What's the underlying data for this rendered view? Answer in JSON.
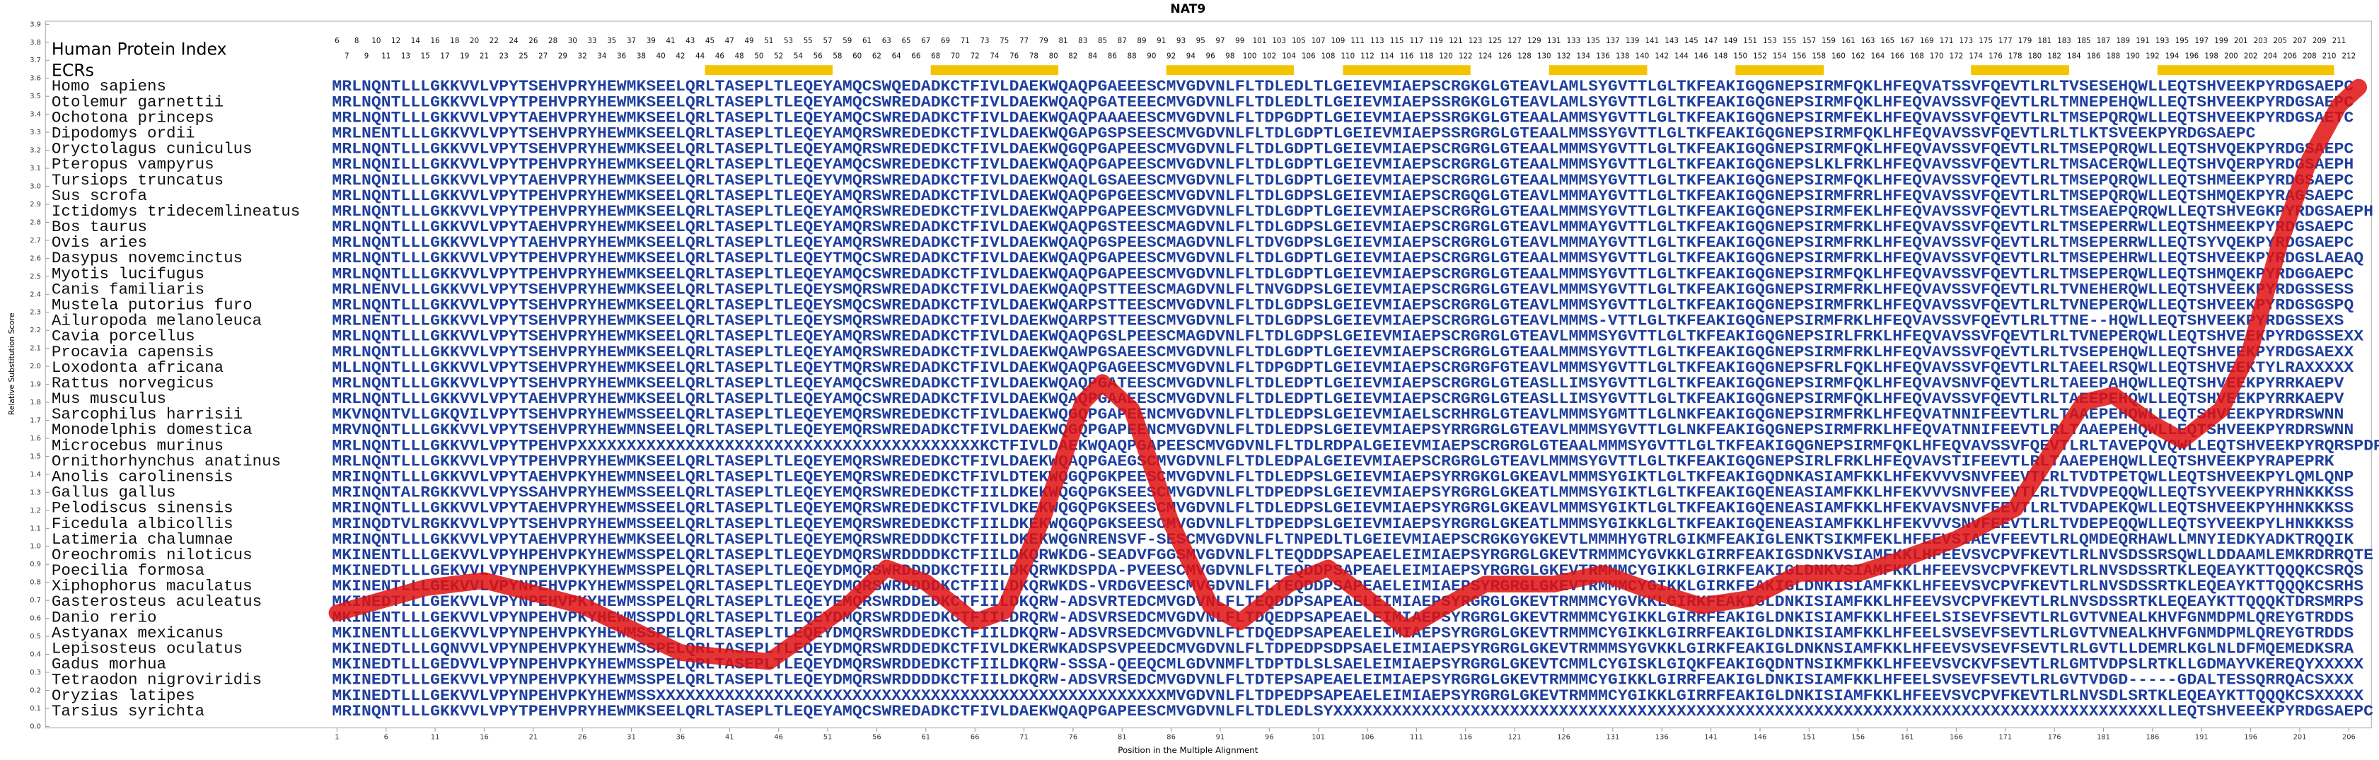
{
  "chart_data": {
    "type": "line",
    "title": "NAT9",
    "xlabel": "Position in the Multiple Alignment",
    "ylabel": "Relative Substitution Score",
    "header_label": "Human Protein Index",
    "ecr_label": "ECRs",
    "color": "#e01010",
    "ecr_color": "#f5c400",
    "sequence_color": "#1f3f9f",
    "xlim": [
      -28.7,
      208.3
    ],
    "ylim": [
      0,
      3.9
    ],
    "xticks": [
      1,
      6,
      11,
      16,
      21,
      26,
      31,
      36,
      41,
      46,
      51,
      56,
      61,
      66,
      71,
      76,
      81,
      86,
      91,
      96,
      101,
      106,
      111,
      116,
      121,
      126,
      131,
      136,
      141,
      146,
      151,
      156,
      161,
      166,
      171,
      176,
      181,
      186,
      191,
      196,
      201,
      206
    ],
    "yticks": [
      {
        "value": 0,
        "label": "0.0"
      },
      0.1,
      0.2,
      0.3,
      0.4,
      0.5,
      0.6,
      0.7,
      0.8,
      0.9,
      {
        "value": 1,
        "label": "1.0"
      },
      1.1,
      1.2,
      1.3,
      1.4,
      1.5,
      1.6,
      1.7,
      1.8,
      1.9,
      {
        "value": 2,
        "label": "2.0"
      },
      2.1,
      2.2,
      2.3,
      2.4,
      2.5,
      2.6,
      2.7,
      2.8,
      2.9,
      {
        "value": 3,
        "label": "3.0"
      },
      3.1,
      3.2,
      3.3,
      3.4,
      3.5,
      3.6,
      3.7,
      3.8,
      3.9
    ],
    "human_index": [
      6,
      7,
      8,
      9,
      10,
      11,
      12,
      13,
      14,
      15,
      16,
      17,
      18,
      19,
      20,
      21,
      22,
      23,
      24,
      25,
      26,
      27,
      28,
      29,
      30,
      32,
      33,
      34,
      35,
      36,
      37,
      38,
      39,
      40,
      41,
      42,
      43,
      44,
      45,
      46,
      47,
      48,
      49,
      50,
      51,
      52,
      53,
      54,
      55,
      56,
      57,
      58,
      59,
      60,
      61,
      62,
      63,
      64,
      65,
      66,
      67,
      68,
      69,
      70,
      71,
      72,
      73,
      74,
      75,
      76,
      77,
      78,
      79,
      80,
      81,
      82,
      83,
      84,
      85,
      86,
      87,
      88,
      89,
      90,
      91,
      92,
      93,
      94,
      95,
      96,
      97,
      98,
      99,
      100,
      101,
      102,
      103,
      104,
      105,
      106,
      107,
      108,
      109,
      110,
      111,
      112,
      113,
      114,
      115,
      116,
      117,
      118,
      119,
      120,
      121,
      122,
      123,
      124,
      125,
      126,
      127,
      128,
      129,
      130,
      131,
      132,
      133,
      134,
      135,
      136,
      137,
      138,
      139,
      140,
      141,
      142,
      143,
      144,
      145,
      146,
      147,
      148,
      149,
      150,
      151,
      152,
      153,
      154,
      155,
      156,
      157,
      158,
      159,
      160,
      161,
      162,
      163,
      164,
      165,
      166,
      167,
      168,
      169,
      170,
      171,
      172,
      173,
      174,
      175,
      176,
      177,
      178,
      179,
      180,
      181,
      182,
      183,
      184,
      185,
      186,
      187,
      188,
      189,
      190,
      191,
      192,
      193,
      194,
      195,
      196,
      197,
      198,
      199,
      200,
      201,
      202,
      203,
      204,
      205,
      206,
      207,
      208,
      209,
      210,
      211,
      212
    ],
    "ecrs": [
      [
        39,
        51
      ],
      [
        62,
        74
      ],
      [
        86,
        98
      ],
      [
        104,
        116
      ],
      [
        125,
        134
      ],
      [
        144,
        152
      ],
      [
        168,
        177
      ],
      [
        187,
        204
      ]
    ],
    "x": [
      1,
      10,
      16,
      26,
      36,
      45,
      53,
      57,
      61,
      66,
      69,
      73,
      77,
      79,
      82,
      86,
      90,
      93,
      98,
      102,
      106,
      110,
      114,
      118,
      125,
      130,
      134,
      140,
      145,
      150,
      156,
      160,
      166,
      172,
      176,
      179,
      182,
      186,
      189,
      193,
      196,
      199,
      202,
      205,
      207
    ],
    "values": [
      0.63,
      0.77,
      0.81,
      0.67,
      0.41,
      0.36,
      0.67,
      0.88,
      0.8,
      0.58,
      0.64,
      1.17,
      1.8,
      1.91,
      1.76,
      1.13,
      0.67,
      0.58,
      0.79,
      0.88,
      0.71,
      0.54,
      0.67,
      0.79,
      0.79,
      0.85,
      0.77,
      0.67,
      0.71,
      0.85,
      0.85,
      0.92,
      1.04,
      1.21,
      1.55,
      1.8,
      1.84,
      1.68,
      1.59,
      1.76,
      2.1,
      2.69,
      3.15,
      3.45,
      3.55
    ],
    "species": [
      "Homo sapiens",
      "Otolemur garnettii",
      "Ochotona princeps",
      "Dipodomys ordii",
      "Oryctolagus cuniculus",
      "Pteropus vampyrus",
      "Tursiops truncatus",
      "Sus scrofa",
      "Ictidomys tridecemlineatus",
      "Bos taurus",
      "Ovis aries",
      "Dasypus novemcinctus",
      "Myotis lucifugus",
      "Canis familiaris",
      "Mustela putorius furo",
      "Ailuropoda melanoleuca",
      "Cavia porcellus",
      "Procavia capensis",
      "Loxodonta africana",
      "Rattus norvegicus",
      "Mus musculus",
      "Sarcophilus harrisii",
      "Monodelphis domestica",
      "Microcebus murinus",
      "Ornithorhynchus anatinus",
      "Anolis carolinensis",
      "Gallus gallus",
      "Pelodiscus sinensis",
      "Ficedula albicollis",
      "Latimeria chalumnae",
      "Oreochromis niloticus",
      "Poecilia formosa",
      "Xiphophorus maculatus",
      "Gasterosteus aculeatus",
      "Danio rerio",
      "Astyanax mexicanus",
      "Lepisosteus oculatus",
      "Gadus morhua",
      "Tetraodon nigroviridis",
      "Oryzias latipes",
      "Tarsius syrichta"
    ],
    "sequences": [
      "MRLNQNTLLLGKKVVLVPYTSEHVPRYHEWMKSEELQRLTASEPLTLEQEYAMQCSWQEDADKCTFIVLDAEKWQAQPGAEEESCMVGDVNLFLTDLEDLTLGEIEVMIAEPSCRGKGLGTEAVLAMLSYGVTTLGLTKFEAKIGQGNEPSIRMFQKLHFEQVATSSVFQEVTLRLTVSESEHQWLLEQTSHVEEKPYRDGSAEPC",
      "MRLNQNTLLLGKKVVLVPYTPEHVPRYHEWMKSEELQRLTASEPLTLEQEYAMQCSWREDADKCTFIVLDAEKWQAQPGATEEECMVGDVNLFLTDLEDLTLGEIEVMIAEPSSRGKGLGTEAVLAMLSYGVTTLGLTKFEAKIGQGNEPSIRMFQKLHFEQVAVSSVFQEVTLRLTMNEPEHQWLLEQTSHVEEKPYRDGSAEPC",
      "MRLNQNTLLLGKKVVLVPYTAEHVPRYHEWMKSEELQRLTASEPLTLEQEYAMQCSWREDADKCTFIVLDAEKWQAQPAAAEESCMVGDVNLFLTDPGDPTLGEIEVMIAEPSSRGKGLGTEAALAMMSYGVTTLGLTKFEAKIGQGNEPSIRMFEKLHFEQVAVSSVFQEVTLRLTMSEPQRQWLLEQTSHVEEKPYRDGSAETC",
      "MRLNENTLLLGKKVVLVPYTSEHVPRYHEWMKSEELQRLTASEPLTLEQEYAMQRSWREDEDKCTFIVLDAEKWQGAPGSPSEESCMVGDVNLFLTDLGDPTLGEIEVMIAEPSSRGRGLGTEAALMMSSYGVTTLGLTKFEAKIGQGNEPSIRMFQKLHFEQVAVSSVFQEVTLRLTLKTSVEEKPYRDGSAEPC",
      "MRLNQNTLLLGKKVVLVPYTSEHVPRYHEWMKSEELQRLTASEPLTLEQEYAMQRSWREDEDKCTFIVLDAEKWQGQPGAPEESCMVGDVNLFLTDLGDPTLGEIEVMIAEPSCRGRGLGTEAALMMMSYGVTTLGLTKFEAKIGQGNEPSIRMFQKLHFEQVAVSSVFQEVTLRLTMSEPQRQWLLEQTSHVQEKPYRDGSAEPC",
      "MRLNQNILLLGKKVVLVPYTPEHVPRYHEWMKSEELQRLTASEPLTLEQEYAMQCSWREDEDKCTFIVLDAEKWQAQPGAPEESCMVGDVNLFLTDLGDPTLGEIEVMIAEPSCRGRGLGTEAALMMMSYGVTTLGLTKFEAKIGQGNEPSLKLFRKLHFEQVAVSSVFQEVTLRLTMSACERQWLLEQTSHVQERPYRDGSAEPH",
      "MRLNQNILLLGKKVVLVPYTAEHVPRYHEWMKSEELQRLTASEPLTLEQEYVMQRSWREDADKCTFIVLDAEKWQAQLGSAEESCMVGDVNLFLTDLGDPTLGEIEVMIAEPSCRGRGLGTEAALMMMSYGVTTLGLTKFEAKIGQGNEPSIRMFQKLHFEQVAVSSVFQEVTLRLTMSEPQRQWLLEQTSHMEEKPYRDGSAEPC",
      "MRLNQNTLLLGKKVVLVPYTPEHVPRYHEWMKSEELQRLTASEPLTLEQEYAMQRSWREDADKCTFIVLDAEKWQAQPGPGEESCMVGDVNLFLTDLGDPSLGEIEVMIAEPSCRGQGLGTEAVLMMMAYGVTTLGLTKFEAKIGQGNEPSIRMFRRLHFEQVAVSSVFQEVTLRLTMSEPQRQWLLEQTSHMQEKPYRAGSAEPC",
      "MRLNQNTLLLGKKVVLVPYTPEHVPRYHEWMKSEELQRLTASEPLTLEQEYAMQRSWREDEDKCTFIVLDAEKWQAPPGAPEESCMVGDVNLFLTDLGDPTLGEIEVMIAEPSCRGRGLGTEAALMMMSYGVTTLGLTKFEAKIGQGNEPSIRMFEKLHFEQVAVSSVFQEVTLRLTMSEAEPQRQWLLEQTSHVEGKPYRDGSAEPH",
      "MRLNQNTLLLGKKVVLVPYTAEHVPRYHEWMKSEELQRLTASEPLTLEQEYAMQRSWREDADKCTFIVLDAEKWQAQPGSTEESCMAGDVNLFLTDLGDPSLGEIEVMIAEPSCRGRGLGTEAVLMMMAYGVTTLGLTKFEAKIGQGNEPSIRMFRKLHFEQVAVSSVFQEVTLRLTMSEPERRWLLEQTSHMEEKPYRDGSAEPC",
      "MRLNQNTLLLGKKVVLVPYTAEHVPRYHEWMKSEELQRLTASEPLTLEQEYAMQRSWREDADKCTFIVLDAEKWQAQPGSPEESCMAGDVNLFLTDVGDPSLGEIEVMIAEPSCRGRGLGTEAVLMMMAYGVTTLGLTKFEAKIGQGNEPSIRMFRKLHFEQVAVSSVFQEVTLRLTMSEPERRWLLEQTSYVQEKPYRDGSAEPC",
      "MRLNQNTLLLGKKVVLVPYTPEHVPRYHEWMKSEELQRLTASEPLTLEQEYTMQCSWREDADKCTFIVLDAEKWQAQPGAPEESCMVGDVNLFLTDLGDPTLGEIEVMIAEPSCRGRGLGTEAALMMMSYGVTTLGLTKFEAKIGQGNEPSIRMFRKLHFEQVAVSSVFQEVTLRLTMSEPEHRWLLEQTSHVEEKPYRDGSLAEAQ",
      "MRLNQNTLLLGKKVVLVPYTPEHVPRYHEWMKSEELQRLTASEPLTLEQEYAMQCSWREDADKCTFIVLDAEKWQAQPGAPEESCMVGDVNLFLTDLGDPTLGEIEVMIAEPSCRGRGLGTEAALMMMSYGVTTLGLTKFEAKIGQGNEPSIRMFQKLHFEQVAVSSVFQEVTLRLTMSEPERQWLLEQTSHMQEKPYRDGGAEPC",
      "MRLNENVLLLGKKVVLVPYTSEHVPRYHEWMKSEELQRLTASEPLTLEQEYSMQRSWREDADKCTFIVLDAEKWQAQPSTTEESCMAGDVNLFLTNVGDPSLGEIEVMIAEPSCRGRGLGTEAVLMMMSYGVTTLGLTKFEAKIGQGNEPSIRMFRKLHFEQVAVSSVFQEVTLRLTVNEHERQWLLEQTSHVEEKPYRDGSSESS",
      "MRLNQNTLLLGKKVVLVPYTSEHVPRYHEWMKSEELQRLTASEPLTLEQEYSMQCSWREDADKCTFIVLDAEKWQARPSTTEESCMVGDVNLFLTDLGDPSLGEIEVMIAEPSCRGRGLGTEAVLMMMSYGVTTLGLTKFEAKIGQGNEPSIRMFRKLHFEQVAVSSVFQEVTLRLTVNEPERQWLLEQTSHVEEKPYRDGSGSPQ",
      "MRLNENTLLLGKKVVLVPYTSEHVPRYHEWMKSEELQRLTASEPLTLEQEYSMQRSWREDADKCTFIVLDAEKWQARPSTTEESCMVGDVNLFLTDLGDPSLGEIEVMIAEPSCRGRGLGTEAVLMMMS-VTTLGLTKFEAKIGQGNEPSIRMFRKLHFEQVAVSSVFQEVTLRLTTNE--HQWLLEQTSHVEEKPYRDGSSEXS",
      "MRLNQNTLLLGKKVVLVPYTSEHVPRYHEWMKSEELQRLTASEPLTLEQEYAMQRSWREDADKCTFIVLDAEKWQAQPGSLPEESCMAGDVNLFLTDLGDPSLGEIEVMIAEPSCRGRGLGTEAVLMMMSYGVTTLGLTKFEAKIGQGNEPSIRLFRKLHFEQVAVSSVFQEVTLRLTVNEPERQWLLEQTSHVEEKPYRDGSSEXX",
      "MRLNQNTLLLGKKVVLVPYTSEHVPRYHEWMKSEELQRLTASEPLTLEQEYAMQRSWREDADKCTFIVLDAEKWQAWPGSAEESCMVGDVNLFLTDLGDPTLGEIEVMIAEPSCRGRGLGTEAALMMMSYGVTTLGLTKFEAKIGQGNEPSIRMFRKLHFEQVAVSSVFQEVTLRLTVSEPEHQWLLEQTSHVEEKPYRDGSAEXX",
      "MLLNQNTLLLGKKVVLVPYTSEHVPRYHEWMKSEELQRLTASEPLTLEQEYTMQRSWREDADKCTFIVLDAEKWQAQPGAGEESCMVGDVNLFLTDPGDPTLGEIEVMIAEPSCRGRGFGTEAVLMMMSYGVTTLGLTKFEAKIGQGNEPSFRLFQKLHFEQVAVSSVFQEVTLRLTAEELRSQWLLEQTSHVEEKTYLRAXXXXX",
      "MRLNQNTLLLGKKVVLVPYTSEHVPRYHEWMKSEELQRLTASEPLTLEQEYAMQCSWREDADKCTFIVLDAEKWQAQPGATEESCMVGDVNLFLTDLEDPTLGEIEVMIAEPSCRGRGLGTEASLLIMSYGVTTLGLTKFEAKIGQGNEPSIRMFQKLHFEQVAVSNVFQEVTLRLTAEEPAHQWLLEQTSHVEEKPYRRKAEPV",
      "MRLNQNTLLLGKKVVLVPYTAEHVPRYHEWMKSEELQRLTASEPLTLEQEYAMQCSWREDADKCTFIVLDAEKWQAQPGAAEESCMVGDVNLFLTDLEDPTLGEIEVMIAEPSCRGRGLGTEASLLIMSYGVTTLGLTKFEAKIGQGNEPSIRMFQKLHFEQVAVSSVFQEVTLRLTAEEPEHQWLLEQTSHVEEKPYRRKAEPV",
      "MKVNQNTVLLGKQVILVPYTSEHVPRYHEWMSSEELQRLTASEPLTLEQEYEMQRSWREDEDKCTFIVLDAEKWQGQPGAPEENCMVGDVNLFLTDLEDPSLGEIEVMIAELSCRHRGLGTEAVLMMMSYGMTTLGLNKFEAKIGQGNEPSIRMFRKLHFEQVATNNIFEEVTLRLTAAEPEHQWLLEQTSHVEEKPYRDRSWNN",
      "MRVNQNTLLLGKKVVLVPYTSEHVPRYHEWMNSEELQRLTASEPLTLEQEYEMQRSWREDADKCTFIVLDAEKWQGQPGAPEENCMVGDVNLFLTDLEDPSLGEIEVMIAEPSYRRGRGLGTEAVLMMMSYGVTTLGLNKFEAKIGQGNEPSIRMFRKLHFEQVATNNIFEEVTLRLTAAEPEHQWLLEQTSHVEEKPYRDRSWNN",
      "MRLNQNTLLLGKKVVLVPYTPEHVPXXXXXXXXXXXXXXXXXXXXXXXXXXXXXXXXXXXXXXXXXKCTFIVLDAEKWQAQPGAPEESCMVGDVNLFLTDLRDPALGEIEVMIAEPSCRGRGLGTEAALMMMSYGVTTLGLTKFEAKIGQGNEPSIRMFQKLHFEQVAVSSVFQEVTLRLTAVEPQVQWLLEQTSHVEEKPYRQRSPDPGS",
      "MRLNQNTLLLGKKVVLVPYTPEHVPRYHEWMKSEELQRLTASEPLTLEQEYEMQRSWREDEDKCTFIVLDAEKWQAQPGAEGSCMVGDVNLFLTDLEDPALGEIEVMIAEPSCRGRGLGTEAVLMMMSYGVTTLGLTKFEAKIGQGNEPSIRLFRKLHFEQVAVSTIFEEVTLRLTAAEPEHQWLLEQTSHVEEKPYRAPEPRK",
      "MRINQNTLLLGKKVVLVPYTAEHVPKYHEWMNSEELQRLTASEPLTLEQEYEMQRSWREDEDKCTFIVLDTEKWQGQPGKPEESCMVGDVNLFLTDLEDPSLGEIEVMIAEPSYRRGKGLGKEAVLMMMSYGIKTLGLTKFEAKIGQDNKASIAMFKKLHFEKVVVSNVFEEVTLRLTVDTPETQWLLEQTSHVEEKPYLQMLQNP",
      "MRINQNTALRGKKVVLVPYSSAHVPRYHEWMSSEELQRLTASEPLTLEQEYEMQRSWREDEDKCTFIILDKEKWQGQPGKSEESCMVGDVNLFLTDPEDPSLGEIEVMIAEPSYRGRGLGKEATLMMMSYGIKTLGLTKFEAKIGQENEASIAMFKKLHFEKVVVSNVFEEVTLRLTVDVPEQQWLLEQTSYVEEKPYRHNKKKSS",
      "MRINQNTLLLGKKVVLVPYTAEHVPRYHEWMSSEELQRLTASEPLTLEQEYEMQRSWREDEDKCTFIVLDKEKWQGQPGKSEESCMVGDVNLFLTDLEDPSLGEIEVMIAEPSYRGRGLGKEAVLMMMSYGIKTLGLTKFEAKIGQENEASIAMFKKLHFEKVAVSNVFEEVTLRLTVDAPEKQWLLEQTSHVEEKPYHHNKKKSS",
      "MRINQDTVLRGKKVVLVPYTSEHVPRYHEWMSSEELQRLTASEPLTLEQEYEMQRSWREDEDKCTFIILDKEKWQGQPGKSEESCMVGDVNLFLTDPEDPSLGEIEVMIAEPSYRGRGLGKEATLMMMSYGIKKLGLTKFEAKIGQENEASIAMFKKLHFEKVVVSNVFEEVTLRLTVDEPEQQWLLEQTSYVEEKPYLHNKKKSS",
      "MRINQNTLLLGKKVVLVPYTAEHVPRYHEWMKSEELQRLTASEPLTLEQEYEMQRSWREDDDKCTFIILDKEKWQGNRENSVF-SESCMVGDVNLFLTNPEDLTLGEIEVMIAEPSCRGKGYGKEVTLMMMHYGTRLGIKMFEAKIGLENKTSIKMFEKLHFEEVSIAEVFEEVTLRLQMDEQRHAWLLMNYIEDKYADKTRQQIK",
      "MKINENTLLLGEKVVLVPYHPEHVPKYHEWMSSPELQRLTASEPLTLEQEYDMQRSWRDDDDKCTFIILDKQRWKDG-SEADVFGGSMVGDVNLFLTEQDDPSAPEAELEIMIAEPSYRGRGLGKEVTRMMMCYGVKKLGIRRFEAKIGSDNKVSIAMFKKLHFEEVSVCPVFKEVTLRLNVSDSSRSQWLLDDAAMLEMKRDRRQTE",
      "MKINEDTLLLGEKVVLVPYNPEHVPKYHEWMSSPELQRLTASEPLTLEQEYDMQRSWRDDDDKCTFIILDKQRWKDSPDA-PVEESCMVGDVNLFLTEQDDPSAPEAELEIMIAEPSYRGRGLGKEVTRMMMCYGIKKLGIRKFEAKIGLDNKVSIAMFKKLHFEEVSVCPVFKEVTLRLNVSDSSRTKLEQEAYKTTQQQKCSRQS",
      "MKINENTLLLGEKVVLVPYNPEHVPKYHEWMSSPELQRLTASEPLTLEQEYDMQRSWRDDDDKCTFIILDKQRWKDS-VRDGVEESCMVGDVNLFLTEQDDPSAPEAELEIMIAEPSYRGRGLGKEVTRMMMCYGIKKLGIRKFEAKIGLDNKISIAMFKKLHFEEVSVCPVFKEVTLRLNVSDSSRTKLEQEAYKTTQQQKCSRHS",
      "MKINEDTLLLGEKVVLVPYNPEHVPKYHEWMSSPELQRLTASEPLTLEQEYEMQRSWRDDEDKCTFIILDKQRW-ADSVRTEDCMVGDVNLFLTEQDDPSAPEAELEIMIAEPSYRGRGLGKEVTRMMMCYGVKKLGIRKFEAKIGLDNKISIAMFKKLHFEEVSVCPVFKEVTLRLNVSDSSRTKLEQEAYKTTQQQKTDRSMRPS",
      "MKINENTLLLGEKVVLVPYNPEHVPKYHEWMSSPDLQRLTASEPLTLEQEYDMQRSWRDDEDKCTFIILDRQRW-ADSVRSEDCMVGDVNLFLTDQEDPSAPEAELEIMIAEPSYRGRGLGKEVTRMMMCYGIKKLGIRRFEAKIGLDNKISIAMFKKLHFEELSISEVFSEVTLRLGVTVNEALKHVFGNMDPMLQREYGTRDDS",
      "MKINENTLLLGEKVVLVPYNPEHVPKYHEWMSSPELQRLTASEPLTLEQEYDMQRSWRDDEDKCTFIILDKQRW-ADSVRSEDCMVGDVNLFLTDQEDPSAPEAELEIMIAEPSYRGRGLGKEVTRMMMCYGIKKLGIRRFEAKIGLDNKISIAMFKKLHFEELSVSEVFSEVTLRLGVTVNEALKHVFGNMDPMLQREYGTRDDS",
      "MKINEDTLLLGQNVVLVPYNPEHVPKYHEWMSSPELQRLTASEPLTLEQEYDMQRSWRDDEDKCTFIVLDKERWKADSPSVPEEDCMVGDVNLFLTDPEDPSDPSAELEIMIAEPSYRGRGLGKEVTRMMMSYGVKKLGIRKFEAKIGLDNKNSIAMFKKLHFEEVSVSEVFSEVTLRLGVTLLDEMRLKGLNLDFMQEMEDKSRA",
      "MKINEDTLLLGEDVVLVPYNPEHVPKYHEWMSSPELQRLTASEPLTLEQEYDMQRSWRDDEDKCTFIILDKQRW-SSSA-QEEQCMLGDVNMFLTDPTDLSLSAELEIMIAEPSYRGRGLGKEVTCMMLCYGISKLGIQKFEAKIGQDNTNSIKMFKKLHFEEVSVCKVFSEVTLRLGMTVDPSLRTKLLGDMAYVKEREQYXXXXX",
      "MKINEDTLLLGEKVVLVPYNPEHVPKYHEWMSSPELQRLTASEPLTLEQEYDMQRSWRDDDDKCTFIILDKQRW-ADSVRSEDCMVGDVNLFLTDTEPSAPEAELEIMIAEPSYRGRGLGKEVTRMMMCYGIKKLGIRRFEAKIGLDNKISIAMFKKLHFEELSVSEVFSEVTLRLGVTVDGD-----GDALTESSQRRQACSXXX",
      "MKINEDTLLLGEKVVLVPYNPEHVPKYHEWMSSXXXXXXXXXXXXXXXXXXXXXXXXXXXXXXXXXXXXXXXXXXXXXXXXXXXXMVGDVNLFLTDPEDPSAPEAELEIMIAEPSYRGRGLGKEVTRMMMCYGIKKLGIRRFEAKIGLDNKISIAMFKKLHFEEVSVCPVFKEVTLRLNVSDLSRTKLEQEAYKTTQQQKCSXXXXX",
      "MRINQNTLLLGKKVVLVPYTPEHVPRYHEWMKSEELQRLTASEPLTLEQEYAMQCSWREDADKCTFIVLDAEKWQAQPGAPEESCMVGDVNLFLTDLEDLSYXXXXXXXXXXXXXXXXXXXXXXXXXXXXXXXXXXXXXXXXXXXXXXXXXXXXXXXXXXXXXXXXXXXXXXXXXXXXXXXXXXXXLLEQTSHVEEEKPYRDGSAEPC"
    ]
  }
}
